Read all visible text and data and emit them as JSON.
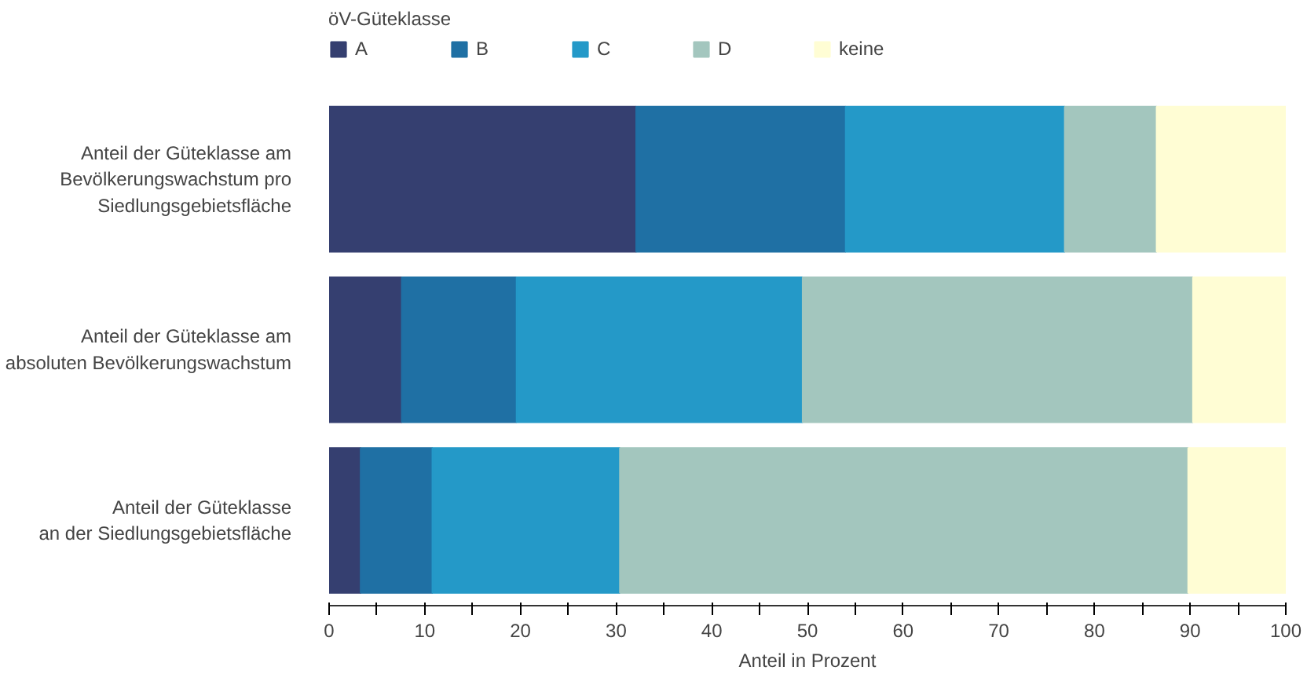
{
  "chart_data": {
    "type": "bar",
    "orientation": "horizontal",
    "stacked": true,
    "categories": [
      "Anteil der Güteklasse am\nBevölkerungswachstum pro\nSiedlungsgebietsfläche",
      "Anteil der Güteklasse am\nabsoluten Bevölkerungswachstum",
      "Anteil der Güteklasse\nan der Siedlungsgebietsfläche"
    ],
    "series": [
      {
        "name": "A",
        "color": "#353f70",
        "values": [
          32.1,
          7.6,
          3.3
        ]
      },
      {
        "name": "B",
        "color": "#1f70a4",
        "values": [
          21.9,
          12.0,
          7.5
        ]
      },
      {
        "name": "C",
        "color": "#2499c8",
        "values": [
          22.9,
          29.9,
          19.6
        ]
      },
      {
        "name": "D",
        "color": "#a3c6be",
        "values": [
          9.6,
          40.8,
          59.4
        ]
      },
      {
        "name": "keine",
        "color": "#fffdd4",
        "values": [
          13.5,
          9.7,
          10.2
        ]
      }
    ],
    "xlim": [
      0,
      100
    ],
    "xticks": [
      0,
      {
        "value": 5,
        "label": null
      },
      10,
      {
        "value": 15,
        "label": null
      },
      20,
      {
        "value": 25,
        "label": null
      },
      30,
      {
        "value": 35,
        "label": null
      },
      40,
      {
        "value": 45,
        "label": null
      },
      50,
      {
        "value": 55,
        "label": null
      },
      60,
      {
        "value": 65,
        "label": null
      },
      70,
      {
        "value": 75,
        "label": null
      },
      80,
      {
        "value": 85,
        "label": null
      },
      90,
      {
        "value": 95,
        "label": null
      },
      100
    ],
    "xlabel": "Anteil in Prozent",
    "legend_title": "öV-Güteklasse",
    "legend": "top",
    "grid": false
  }
}
